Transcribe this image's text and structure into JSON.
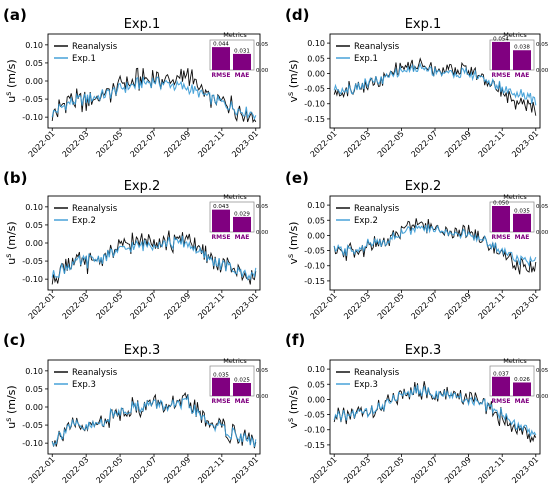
{
  "figure": {
    "legend_labels": [
      "Reanalysis"
    ]
  },
  "chart_data": [
    {
      "panel_label": "(a)",
      "type": "line",
      "title": "Exp.1",
      "ylabel": "u^s (m/s)",
      "ylim": [
        -0.13,
        0.13
      ],
      "yticks": [
        "0.10",
        "0.05",
        "0.00",
        "-0.05",
        "-0.10"
      ],
      "ytick_values": [
        0.1,
        0.05,
        0.0,
        -0.05,
        -0.1
      ],
      "xticks": [
        "2022-01",
        "2022-03",
        "2022-05",
        "2022-07",
        "2022-09",
        "2022-11",
        "2023-01"
      ],
      "x": [
        "2022-01",
        "2022-02",
        "2022-03",
        "2022-04",
        "2022-05",
        "2022-06",
        "2022-07",
        "2022-08",
        "2022-09",
        "2022-10",
        "2022-11",
        "2022-12",
        "2023-01"
      ],
      "series": [
        {
          "name": "Reanalysis",
          "color": "#000000",
          "values": [
            -0.1,
            -0.05,
            -0.06,
            -0.04,
            -0.01,
            0.0,
            0.01,
            0.0,
            0.02,
            -0.04,
            -0.06,
            -0.08,
            -0.1
          ]
        },
        {
          "name": "Exp.1",
          "color": "#3a9bd5",
          "values": [
            -0.09,
            -0.06,
            -0.05,
            -0.04,
            -0.02,
            -0.01,
            0.0,
            -0.01,
            -0.02,
            -0.04,
            -0.06,
            -0.08,
            -0.09
          ]
        }
      ],
      "metrics": {
        "title": "Metrics",
        "labels": [
          "RMSE",
          "MAE"
        ],
        "values": [
          0.044,
          0.031
        ],
        "value_labels": [
          "0.044",
          "0.031"
        ],
        "color": "#800080",
        "yticks": [
          "0.05",
          "0.00"
        ],
        "ylim": [
          0,
          0.05
        ]
      }
    },
    {
      "panel_label": "(b)",
      "type": "line",
      "title": "Exp.2",
      "ylabel": "u^s (m/s)",
      "ylim": [
        -0.13,
        0.13
      ],
      "yticks": [
        "0.10",
        "0.05",
        "0.00",
        "-0.05",
        "-0.10"
      ],
      "ytick_values": [
        0.1,
        0.05,
        0.0,
        -0.05,
        -0.1
      ],
      "xticks": [
        "2022-01",
        "2022-03",
        "2022-05",
        "2022-07",
        "2022-09",
        "2022-11",
        "2023-01"
      ],
      "x": [
        "2022-01",
        "2022-02",
        "2022-03",
        "2022-04",
        "2022-05",
        "2022-06",
        "2022-07",
        "2022-08",
        "2022-09",
        "2022-10",
        "2022-11",
        "2022-12",
        "2023-01"
      ],
      "series": [
        {
          "name": "Reanalysis",
          "color": "#000000",
          "values": [
            -0.1,
            -0.05,
            -0.06,
            -0.04,
            -0.01,
            0.0,
            0.01,
            0.0,
            0.02,
            -0.04,
            -0.06,
            -0.08,
            -0.1
          ]
        },
        {
          "name": "Exp.2",
          "color": "#3a9bd5",
          "values": [
            -0.09,
            -0.06,
            -0.05,
            -0.04,
            -0.02,
            -0.01,
            0.0,
            0.0,
            0.0,
            -0.04,
            -0.06,
            -0.08,
            -0.09
          ]
        }
      ],
      "metrics": {
        "title": "Metrics",
        "labels": [
          "RMSE",
          "MAE"
        ],
        "values": [
          0.043,
          0.029
        ],
        "value_labels": [
          "0.043",
          "0.029"
        ],
        "color": "#800080",
        "yticks": [
          "0.05",
          "0.00"
        ],
        "ylim": [
          0,
          0.05
        ]
      }
    },
    {
      "panel_label": "(c)",
      "type": "line",
      "title": "Exp.3",
      "ylabel": "u^s (m/s)",
      "ylim": [
        -0.13,
        0.13
      ],
      "yticks": [
        "0.10",
        "0.05",
        "0.00",
        "-0.05",
        "-0.10"
      ],
      "ytick_values": [
        0.1,
        0.05,
        0.0,
        -0.05,
        -0.1
      ],
      "xticks": [
        "2022-01",
        "2022-03",
        "2022-05",
        "2022-07",
        "2022-09",
        "2022-11",
        "2023-01"
      ],
      "x": [
        "2022-01",
        "2022-02",
        "2022-03",
        "2022-04",
        "2022-05",
        "2022-06",
        "2022-07",
        "2022-08",
        "2022-09",
        "2022-10",
        "2022-11",
        "2022-12",
        "2023-01"
      ],
      "series": [
        {
          "name": "Reanalysis",
          "color": "#000000",
          "values": [
            -0.1,
            -0.05,
            -0.06,
            -0.04,
            -0.01,
            0.0,
            0.01,
            0.0,
            0.02,
            -0.04,
            -0.06,
            -0.08,
            -0.1
          ]
        },
        {
          "name": "Exp.3",
          "color": "#3a9bd5",
          "values": [
            -0.1,
            -0.05,
            -0.06,
            -0.04,
            -0.01,
            0.0,
            0.01,
            0.0,
            0.01,
            -0.04,
            -0.06,
            -0.08,
            -0.1
          ]
        }
      ],
      "metrics": {
        "title": "Metrics",
        "labels": [
          "RMSE",
          "MAE"
        ],
        "values": [
          0.035,
          0.025
        ],
        "value_labels": [
          "0.035",
          "0.025"
        ],
        "color": "#800080",
        "yticks": [
          "0.05",
          "0.00"
        ],
        "ylim": [
          0,
          0.05
        ]
      }
    },
    {
      "panel_label": "(d)",
      "type": "line",
      "title": "Exp.1",
      "ylabel": "v^s (m/s)",
      "ylim": [
        -0.18,
        0.13
      ],
      "yticks": [
        "0.10",
        "0.05",
        "0.00",
        "-0.05",
        "-0.10",
        "-0.15"
      ],
      "ytick_values": [
        0.1,
        0.05,
        0.0,
        -0.05,
        -0.1,
        -0.15
      ],
      "xticks": [
        "2022-01",
        "2022-03",
        "2022-05",
        "2022-07",
        "2022-09",
        "2022-11",
        "2023-01"
      ],
      "x": [
        "2022-01",
        "2022-02",
        "2022-03",
        "2022-04",
        "2022-05",
        "2022-06",
        "2022-07",
        "2022-08",
        "2022-09",
        "2022-10",
        "2022-11",
        "2022-12",
        "2023-01"
      ],
      "series": [
        {
          "name": "Reanalysis",
          "color": "#000000",
          "values": [
            -0.06,
            -0.05,
            -0.04,
            -0.02,
            0.02,
            0.03,
            0.02,
            0.01,
            0.01,
            -0.02,
            -0.06,
            -0.1,
            -0.12
          ]
        },
        {
          "name": "Exp.1",
          "color": "#3a9bd5",
          "values": [
            -0.05,
            -0.05,
            -0.03,
            -0.02,
            0.01,
            0.02,
            0.01,
            0.0,
            0.0,
            -0.02,
            -0.05,
            -0.07,
            -0.09
          ]
        }
      ],
      "metrics": {
        "title": "Metrics",
        "labels": [
          "RMSE",
          "MAE"
        ],
        "values": [
          0.054,
          0.038
        ],
        "value_labels": [
          "0.054",
          "0.038"
        ],
        "color": "#800080",
        "yticks": [
          "0.05",
          "0.00"
        ],
        "ylim": [
          0,
          0.05
        ]
      }
    },
    {
      "panel_label": "(e)",
      "type": "line",
      "title": "Exp.2",
      "ylabel": "v^s (m/s)",
      "ylim": [
        -0.18,
        0.13
      ],
      "yticks": [
        "0.10",
        "0.05",
        "0.00",
        "-0.05",
        "-0.10",
        "-0.15"
      ],
      "ytick_values": [
        0.1,
        0.05,
        0.0,
        -0.05,
        -0.1,
        -0.15
      ],
      "xticks": [
        "2022-01",
        "2022-03",
        "2022-05",
        "2022-07",
        "2022-09",
        "2022-11",
        "2023-01"
      ],
      "x": [
        "2022-01",
        "2022-02",
        "2022-03",
        "2022-04",
        "2022-05",
        "2022-06",
        "2022-07",
        "2022-08",
        "2022-09",
        "2022-10",
        "2022-11",
        "2022-12",
        "2023-01"
      ],
      "series": [
        {
          "name": "Reanalysis",
          "color": "#000000",
          "values": [
            -0.06,
            -0.05,
            -0.04,
            -0.02,
            0.02,
            0.03,
            0.02,
            0.01,
            0.01,
            -0.02,
            -0.06,
            -0.1,
            -0.12
          ]
        },
        {
          "name": "Exp.2",
          "color": "#3a9bd5",
          "values": [
            -0.05,
            -0.05,
            -0.03,
            -0.02,
            0.01,
            0.02,
            0.02,
            0.01,
            0.0,
            -0.02,
            -0.05,
            -0.08,
            -0.09
          ]
        }
      ],
      "metrics": {
        "title": "Metrics",
        "labels": [
          "RMSE",
          "MAE"
        ],
        "values": [
          0.05,
          0.035
        ],
        "value_labels": [
          "0.050",
          "0.035"
        ],
        "color": "#800080",
        "yticks": [
          "0.05",
          "0.00"
        ],
        "ylim": [
          0,
          0.05
        ]
      }
    },
    {
      "panel_label": "(f)",
      "type": "line",
      "title": "Exp.3",
      "ylabel": "v^s (m/s)",
      "ylim": [
        -0.18,
        0.13
      ],
      "yticks": [
        "0.10",
        "0.05",
        "0.00",
        "-0.05",
        "-0.10",
        "-0.15"
      ],
      "ytick_values": [
        0.1,
        0.05,
        0.0,
        -0.05,
        -0.1,
        -0.15
      ],
      "xticks": [
        "2022-01",
        "2022-03",
        "2022-05",
        "2022-07",
        "2022-09",
        "2022-11",
        "2023-01"
      ],
      "x": [
        "2022-01",
        "2022-02",
        "2022-03",
        "2022-04",
        "2022-05",
        "2022-06",
        "2022-07",
        "2022-08",
        "2022-09",
        "2022-10",
        "2022-11",
        "2022-12",
        "2023-01"
      ],
      "series": [
        {
          "name": "Reanalysis",
          "color": "#000000",
          "values": [
            -0.06,
            -0.05,
            -0.04,
            -0.02,
            0.02,
            0.03,
            0.02,
            0.01,
            0.01,
            -0.02,
            -0.06,
            -0.1,
            -0.12
          ]
        },
        {
          "name": "Exp.3",
          "color": "#3a9bd5",
          "values": [
            -0.06,
            -0.05,
            -0.04,
            -0.02,
            0.02,
            0.03,
            0.02,
            0.01,
            0.0,
            -0.02,
            -0.05,
            -0.09,
            -0.11
          ]
        }
      ],
      "metrics": {
        "title": "Metrics",
        "labels": [
          "RMSE",
          "MAE"
        ],
        "values": [
          0.037,
          0.026
        ],
        "value_labels": [
          "0.037",
          "0.026"
        ],
        "color": "#800080",
        "yticks": [
          "0.05",
          "0.00"
        ],
        "ylim": [
          0,
          0.05
        ]
      }
    }
  ]
}
